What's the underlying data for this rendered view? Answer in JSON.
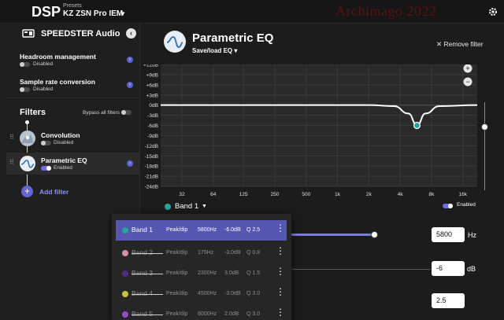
{
  "app": {
    "title": "DSP",
    "presets_label": "Presets",
    "preset_name": "KZ ZSN Pro IEM",
    "watermark": "Archimago 2022"
  },
  "sidebar": {
    "device_name": "SPEEDSTER Audio",
    "settings": [
      {
        "label": "Headroom management",
        "state": "Disabled"
      },
      {
        "label": "Sample rate conversion",
        "state": "Disabled"
      }
    ],
    "filters_title": "Filters",
    "bypass_label": "Bypass all filters",
    "filters": [
      {
        "name": "Convolution",
        "state": "Disabled",
        "enabled": false
      },
      {
        "name": "Parametric EQ",
        "state": "Enabled",
        "enabled": true
      }
    ],
    "add_filter_label": "Add filter"
  },
  "main": {
    "title": "Parametric EQ",
    "save_load_label": "Save/load EQ",
    "remove_filter_label": "Remove filter",
    "y_ticks": [
      "+12dB",
      "+9dB",
      "+6dB",
      "+3dB",
      "0dB",
      "-3dB",
      "-6dB",
      "-9dB",
      "-12dB",
      "-15dB",
      "-18dB",
      "-21dB",
      "-24dB"
    ],
    "x_ticks": [
      "32",
      "64",
      "125",
      "250",
      "500",
      "1k",
      "2k",
      "4k",
      "8k",
      "16k"
    ],
    "zoom_in": "+",
    "zoom_out": "−",
    "selected_band": "Band 1",
    "enabled_label": "Enabled",
    "frequency_value": "5800",
    "frequency_unit": "Hz",
    "gain_value": "-6",
    "gain_unit": "dB",
    "q_value": "2.5",
    "frequency_slider_fraction": 0.6
  },
  "band_menu": [
    {
      "name": "Band 1",
      "type": "Peak/dip",
      "freq": "5800Hz",
      "gain": "-6.0dB",
      "q": "Q 2.5",
      "color": "#21a6a0",
      "enabled": true
    },
    {
      "name": "Band 2",
      "type": "Peak/dip",
      "freq": "175Hz",
      "gain": "-3.0dB",
      "q": "Q 0.8",
      "color": "#d58fa6",
      "enabled": false
    },
    {
      "name": "Band 3",
      "type": "Peak/dip",
      "freq": "2300Hz",
      "gain": "3.0dB",
      "q": "Q 1.5",
      "color": "#4a2e8c",
      "enabled": false
    },
    {
      "name": "Band 4",
      "type": "Peak/dip",
      "freq": "4500Hz",
      "gain": "-3.0dB",
      "q": "Q 3.0",
      "color": "#c9c23c",
      "enabled": false
    },
    {
      "name": "Band 5",
      "type": "Peak/dip",
      "freq": "8000Hz",
      "gain": "2.0dB",
      "q": "Q 3.0",
      "color": "#8a52c6",
      "enabled": false
    }
  ],
  "chart_data": {
    "type": "line",
    "xlabel": "",
    "ylabel": "",
    "x_scale": "log",
    "xlim": [
      20,
      22000
    ],
    "ylim": [
      -24,
      12
    ],
    "grid": true,
    "series": [
      {
        "values": [
          [
            20,
            0
          ],
          [
            2000,
            0
          ],
          [
            3500,
            -0.3
          ],
          [
            4800,
            -2.5
          ],
          [
            5800,
            -6
          ],
          [
            7000,
            -2.5
          ],
          [
            9500,
            -0.3
          ],
          [
            22000,
            0
          ]
        ]
      }
    ],
    "markers": [
      {
        "x": 5800,
        "y": -6,
        "color": "#21a6a0"
      }
    ]
  }
}
